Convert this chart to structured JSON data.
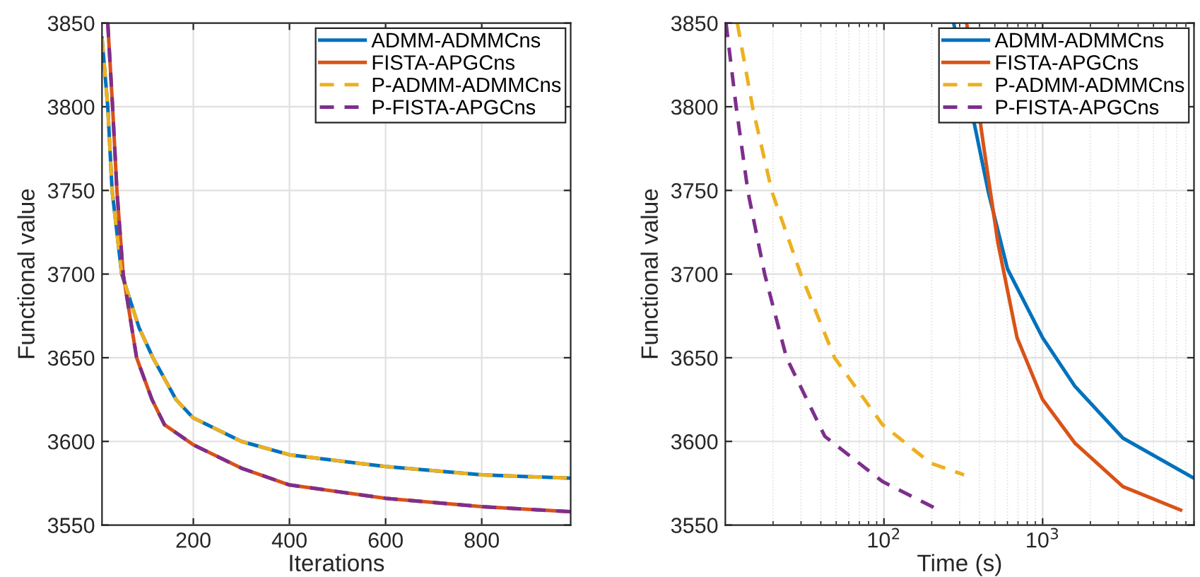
{
  "chart_data": [
    {
      "type": "line",
      "xlabel": "Iterations",
      "ylabel": "Functional value",
      "xlim": [
        10,
        985
      ],
      "ylim": [
        3550,
        3850
      ],
      "xticks": [
        200,
        400,
        600,
        800
      ],
      "yticks": [
        3550,
        3600,
        3650,
        3700,
        3750,
        3800,
        3850
      ],
      "grid": true,
      "legend": "top right",
      "series": [
        {
          "name": "ADMM-ADMMCns",
          "color": "#0072bd",
          "line_style": "solid",
          "x": [
            10,
            22,
            31,
            51,
            87,
            116,
            164,
            200,
            300,
            400,
            600,
            800,
            985
          ],
          "values": [
            3841,
            3800,
            3750,
            3700,
            3668,
            3650,
            3625,
            3614,
            3600,
            3592,
            3585,
            3580,
            3578
          ]
        },
        {
          "name": "FISTA-APGCns",
          "color": "#d95319",
          "line_style": "solid",
          "x": [
            22,
            32,
            41,
            54,
            82,
            114,
            140,
            200,
            300,
            400,
            600,
            800,
            985
          ],
          "values": [
            3850,
            3800,
            3750,
            3700,
            3650,
            3625,
            3610,
            3598,
            3584,
            3574,
            3566,
            3561,
            3558
          ]
        },
        {
          "name": "P-ADMM-ADMMCns",
          "color": "#edb120",
          "line_style": "dashed",
          "x": [
            10,
            22,
            31,
            51,
            87,
            116,
            164,
            200,
            300,
            400,
            600,
            800,
            985
          ],
          "values": [
            3841,
            3800,
            3750,
            3700,
            3668,
            3650,
            3625,
            3614,
            3600,
            3592,
            3585,
            3580,
            3578
          ]
        },
        {
          "name": "P-FISTA-APGCns",
          "color": "#7e2f8e",
          "line_style": "dashed",
          "x": [
            22,
            32,
            41,
            54,
            82,
            114,
            140,
            200,
            300,
            400,
            600,
            800,
            985
          ],
          "values": [
            3850,
            3800,
            3750,
            3700,
            3650,
            3625,
            3610,
            3598,
            3584,
            3574,
            3566,
            3561,
            3558
          ]
        }
      ]
    },
    {
      "type": "line",
      "xlabel": "Time (s)",
      "ylabel": "Functional value",
      "log": "x",
      "xlim": [
        10,
        9000
      ],
      "ylim": [
        3550,
        3850
      ],
      "xticks": [
        {
          "value": 100,
          "label": "10$^{2}$"
        },
        {
          "value": 1000,
          "label": "10$^{3}$"
        }
      ],
      "yticks": [
        3550,
        3600,
        3650,
        3700,
        3750,
        3800,
        3850
      ],
      "grid": true,
      "legend": "top right",
      "series": [
        {
          "name": "ADMM-ADMMCns",
          "color": "#0072bd",
          "line_style": "solid",
          "x": [
            275,
            455,
            601,
            1000,
            1596,
            3206,
            9000
          ],
          "values": [
            3850,
            3749,
            3703,
            3662,
            3633,
            3602,
            3578
          ]
        },
        {
          "name": "FISTA-APGCns",
          "color": "#d95319",
          "line_style": "solid",
          "x": [
            332,
            424,
            522,
            690,
            1000,
            1596,
            3206,
            7413
          ],
          "values": [
            3850,
            3777,
            3719,
            3662,
            3625,
            3599,
            3573,
            3559
          ]
        },
        {
          "name": "P-ADMM-ADMMCns",
          "color": "#edb120",
          "line_style": "dashed",
          "x": [
            11.9,
            14.9,
            19.7,
            29.9,
            48.8,
            97.9,
            197,
            320
          ],
          "values": [
            3850,
            3799,
            3749,
            3700,
            3650,
            3610,
            3587,
            3580
          ]
        },
        {
          "name": "P-FISTA-APGCns",
          "color": "#7e2f8e",
          "line_style": "dashed",
          "x": [
            10.1,
            11.7,
            13.9,
            17.7,
            24.3,
            42.4,
            98,
            211
          ],
          "values": [
            3850,
            3800,
            3749,
            3700,
            3650,
            3603,
            3576,
            3560
          ]
        }
      ]
    }
  ]
}
